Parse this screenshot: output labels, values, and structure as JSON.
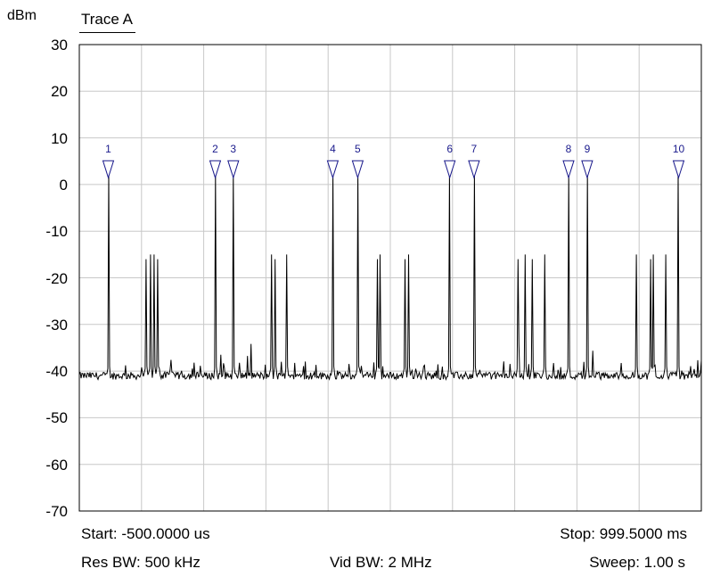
{
  "header": {
    "unit": "dBm",
    "trace_label": "Trace A"
  },
  "footer": {
    "start": "Start: -500.0000 us",
    "stop": "Stop: 999.5000 ms",
    "res_bw": "Res BW: 500 kHz",
    "vid_bw": "Vid BW: 2 MHz",
    "sweep": "Sweep: 1.00 s"
  },
  "chart_data": {
    "type": "line",
    "title": "Trace A",
    "ylabel": "dBm",
    "ylim": [
      -70,
      30
    ],
    "xlim": [
      -0.0005,
      0.9995
    ],
    "x_unit": "s",
    "yticks": [
      30,
      20,
      10,
      0,
      -10,
      -20,
      -30,
      -40,
      -50,
      -60,
      -70
    ],
    "grid": true,
    "noise_floor_dbm": -41,
    "trace_color": "#000000",
    "marker_color": "#1a1a8c",
    "peaks": [
      {
        "x": 0.046,
        "y": 3
      },
      {
        "x": 0.107,
        "y": -16
      },
      {
        "x": 0.114,
        "y": -15
      },
      {
        "x": 0.119,
        "y": -15
      },
      {
        "x": 0.125,
        "y": -16
      },
      {
        "x": 0.218,
        "y": 3
      },
      {
        "x": 0.247,
        "y": 3
      },
      {
        "x": 0.308,
        "y": -15
      },
      {
        "x": 0.314,
        "y": -16
      },
      {
        "x": 0.333,
        "y": -15
      },
      {
        "x": 0.407,
        "y": 3
      },
      {
        "x": 0.447,
        "y": 3
      },
      {
        "x": 0.479,
        "y": -16
      },
      {
        "x": 0.483,
        "y": -15
      },
      {
        "x": 0.523,
        "y": -16
      },
      {
        "x": 0.529,
        "y": -15
      },
      {
        "x": 0.595,
        "y": 3
      },
      {
        "x": 0.634,
        "y": 3
      },
      {
        "x": 0.705,
        "y": -16
      },
      {
        "x": 0.716,
        "y": -15
      },
      {
        "x": 0.728,
        "y": -16
      },
      {
        "x": 0.747,
        "y": -15
      },
      {
        "x": 0.786,
        "y": 3
      },
      {
        "x": 0.816,
        "y": 3
      },
      {
        "x": 0.895,
        "y": -15
      },
      {
        "x": 0.918,
        "y": -16
      },
      {
        "x": 0.922,
        "y": -15
      },
      {
        "x": 0.942,
        "y": -15
      },
      {
        "x": 0.963,
        "y": 3
      }
    ],
    "markers": [
      {
        "label": "1",
        "x": 0.046,
        "y": 3
      },
      {
        "label": "2",
        "x": 0.218,
        "y": 3
      },
      {
        "label": "3",
        "x": 0.247,
        "y": 3
      },
      {
        "label": "4",
        "x": 0.407,
        "y": 3
      },
      {
        "label": "5",
        "x": 0.447,
        "y": 3
      },
      {
        "label": "6",
        "x": 0.595,
        "y": 3
      },
      {
        "label": "7",
        "x": 0.634,
        "y": 3
      },
      {
        "label": "8",
        "x": 0.786,
        "y": 3
      },
      {
        "label": "9",
        "x": 0.816,
        "y": 3
      },
      {
        "label": "10",
        "x": 0.963,
        "y": 3
      }
    ]
  }
}
